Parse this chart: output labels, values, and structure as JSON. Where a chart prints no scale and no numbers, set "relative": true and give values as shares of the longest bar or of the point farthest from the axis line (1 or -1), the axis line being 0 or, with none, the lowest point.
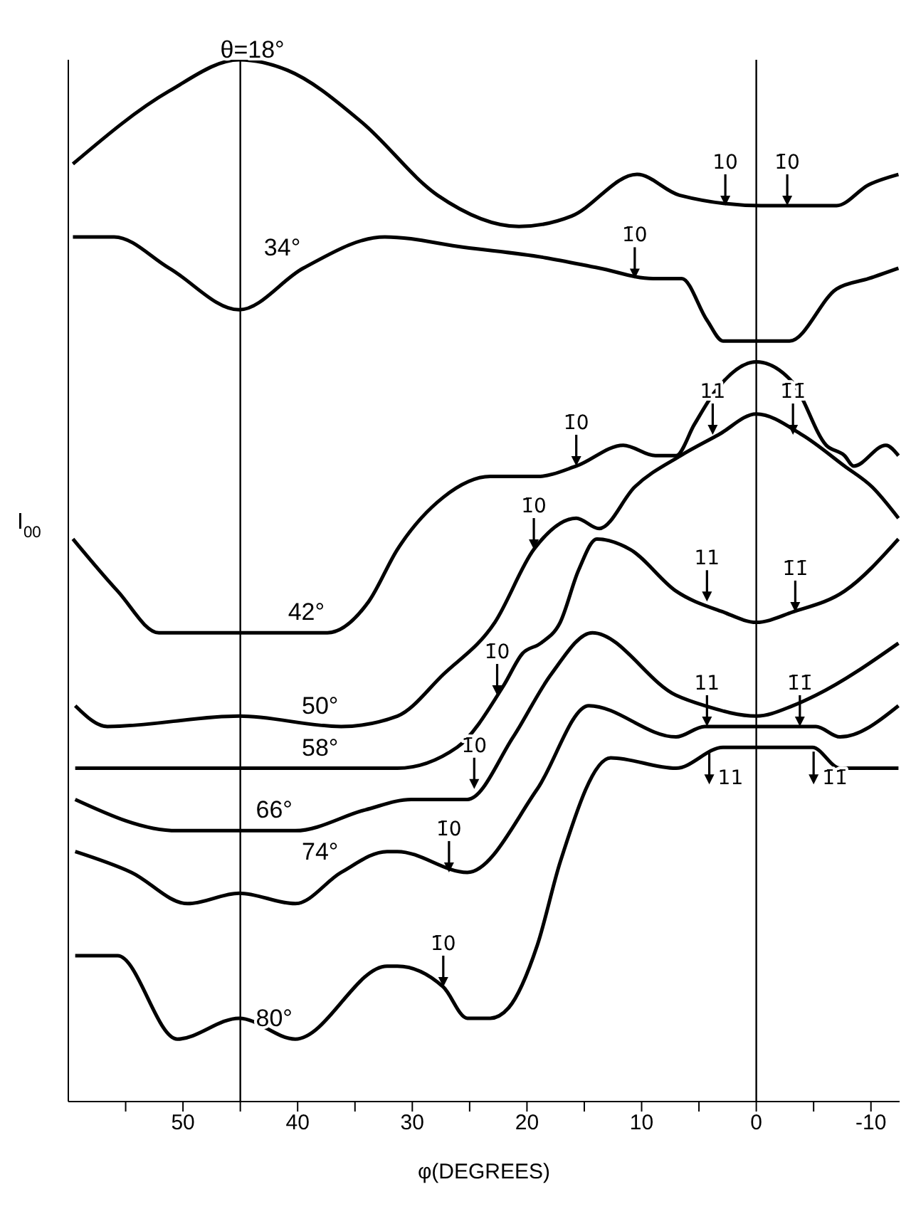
{
  "chart_data": {
    "type": "line",
    "relative": true,
    "xlabel": "φ(DEGREES)",
    "ylabel": "I$_{00}$",
    "marker": "none",
    "xlim": [
      60,
      -12.5
    ],
    "xticks": [
      {
        "value": 55,
        "label": null
      },
      50,
      {
        "value": 45,
        "label": null
      },
      40,
      {
        "value": 35,
        "label": null
      },
      30,
      {
        "value": 25,
        "label": null
      },
      20,
      {
        "value": 15,
        "label": null
      },
      10,
      {
        "value": 5,
        "label": null
      },
      0,
      {
        "value": -5,
        "label": null
      },
      -10
    ],
    "ref_lines": [
      {
        "axis": "x",
        "value": 45,
        "color": "#000000"
      },
      {
        "axis": "x",
        "value": 0,
        "color": "#000000"
      }
    ],
    "series": [
      {
        "name": "θ=18°",
        "color": "#000000",
        "x": [
          59.6,
          51.2,
          45.1,
          40.9,
          34.4,
          27.8,
          20.7,
          16.1,
          10.4,
          6.7,
          -0.4,
          -7.0,
          -9.8,
          -12.4
        ],
        "values": [
          0.9,
          0.97,
          1.0,
          0.99,
          0.94,
          0.87,
          0.84,
          0.85,
          0.89,
          0.87,
          0.86,
          0.86,
          0.88,
          0.89
        ]
      },
      {
        "name": "34°",
        "color": "#000000",
        "x": [
          59.6,
          56.0,
          51.2,
          45.1,
          39.5,
          32.4,
          25.5,
          18.4,
          13.7,
          9.0,
          6.5,
          4.3,
          2.9,
          -0.4,
          -2.9,
          -7.0,
          -9.8,
          -12.4
        ],
        "values": [
          0.83,
          0.83,
          0.8,
          0.76,
          0.8,
          0.83,
          0.82,
          0.81,
          0.8,
          0.79,
          0.79,
          0.75,
          0.73,
          0.73,
          0.73,
          0.78,
          0.79,
          0.8
        ]
      },
      {
        "name": "42°",
        "color": "#000000",
        "x": [
          59.6,
          55.7,
          52.1,
          37.4,
          33.8,
          31.3,
          27.3,
          23.2,
          19.1,
          15.7,
          11.6,
          8.8,
          7.0,
          5.4,
          3.7,
          0,
          -3.2,
          -6.1,
          -7.7,
          -8.5,
          -11.3,
          -12.4
        ],
        "values": [
          0.54,
          0.49,
          0.45,
          0.45,
          0.48,
          0.53,
          0.58,
          0.6,
          0.6,
          0.61,
          0.63,
          0.62,
          0.62,
          0.65,
          0.68,
          0.71,
          0.69,
          0.63,
          0.62,
          0.61,
          0.63,
          0.62
        ]
      },
      {
        "name": "50°",
        "color": "#000000",
        "x": [
          59.4,
          56.6,
          45.1,
          36.2,
          31.3,
          27.3,
          22.8,
          19.4,
          15.7,
          13.7,
          10.6,
          6.6,
          3.3,
          0,
          -4.0,
          -7.7,
          -10.1,
          -12.4
        ],
        "values": [
          0.38,
          0.36,
          0.37,
          0.36,
          0.37,
          0.41,
          0.46,
          0.53,
          0.56,
          0.55,
          0.59,
          0.62,
          0.64,
          0.66,
          0.64,
          0.61,
          0.59,
          0.56
        ]
      },
      {
        "name": "58°",
        "color": "#000000",
        "x": [
          59.4,
          50.5,
          45.1,
          36.2,
          31.3,
          26.1,
          22.0,
          20.4,
          18.8,
          17.1,
          15.5,
          13.9,
          11.0,
          7.0,
          2.9,
          0,
          -3.2,
          -7.7,
          -12.4
        ],
        "values": [
          0.32,
          0.32,
          0.32,
          0.32,
          0.32,
          0.34,
          0.4,
          0.43,
          0.44,
          0.46,
          0.51,
          0.54,
          0.53,
          0.49,
          0.47,
          0.46,
          0.47,
          0.49,
          0.54
        ]
      },
      {
        "name": "66°",
        "color": "#000000",
        "x": [
          59.4,
          50.5,
          45.1,
          40.2,
          34.1,
          30.1,
          25.2,
          21.2,
          17.9,
          14.3,
          7.0,
          4.5,
          0,
          -3.2,
          -5.2,
          -12.4
        ],
        "values": [
          0.29,
          0.26,
          0.26,
          0.26,
          0.28,
          0.29,
          0.29,
          0.35,
          0.41,
          0.45,
          0.39,
          0.38,
          0.37,
          0.38,
          0.39,
          0.44
        ]
      },
      {
        "name": "74°",
        "color": "#000000",
        "x": [
          59.4,
          54.5,
          49.6,
          45.1,
          40.2,
          36.2,
          32.2,
          31.3,
          25.2,
          19.1,
          14.6,
          7.0,
          4.5,
          0,
          -5.2,
          -7.3,
          -12.4
        ],
        "values": [
          0.24,
          0.22,
          0.19,
          0.2,
          0.19,
          0.22,
          0.24,
          0.24,
          0.22,
          0.3,
          0.38,
          0.35,
          0.36,
          0.36,
          0.36,
          0.35,
          0.38
        ]
      },
      {
        "name": "80°",
        "color": "#000000",
        "x": [
          59.4,
          55.7,
          50.5,
          45.1,
          40.2,
          32.2,
          31.3,
          27.3,
          25.2,
          23.2,
          21.6,
          19.1,
          17.1,
          12.7,
          7.0,
          2.9,
          0,
          -4.9,
          -7.3,
          -12.4
        ],
        "values": [
          0.14,
          0.14,
          0.06,
          0.08,
          0.06,
          0.13,
          0.13,
          0.11,
          0.08,
          0.08,
          0.09,
          0.15,
          0.23,
          0.33,
          0.32,
          0.34,
          0.34,
          0.34,
          0.32,
          0.32
        ]
      }
    ],
    "annotations": [
      {
        "text": "10",
        "x": 2.7,
        "y": 0.86
      },
      {
        "text": "1̄0",
        "x": -2.7,
        "y": 0.86
      },
      {
        "text": "1̄0",
        "x": 10.6,
        "y": 0.79
      },
      {
        "text": "1̄0",
        "x": 15.7,
        "y": 0.61
      },
      {
        "text": "1̄0",
        "x": 19.4,
        "y": 0.53
      },
      {
        "text": "11",
        "x": 3.8,
        "y": 0.64
      },
      {
        "text": "1̄1̄",
        "x": -3.2,
        "y": 0.64
      },
      {
        "text": "1̄0",
        "x": 22.6,
        "y": 0.39
      },
      {
        "text": "11",
        "x": 4.3,
        "y": 0.48
      },
      {
        "text": "1̄1̄",
        "x": -3.4,
        "y": 0.47
      },
      {
        "text": "1̄0",
        "x": 24.6,
        "y": 0.3
      },
      {
        "text": "1̄0",
        "x": 26.8,
        "y": 0.22
      },
      {
        "text": "11",
        "x": 4.3,
        "y": 0.36
      },
      {
        "text": "1̄1̄",
        "x": -3.8,
        "y": 0.36
      },
      {
        "text": "1̄0",
        "x": 27.3,
        "y": 0.11
      },
      {
        "text": "11",
        "x": 4.1,
        "y": 0.34
      },
      {
        "text": "1̄1̄",
        "x": -5.0,
        "y": 0.34
      }
    ]
  }
}
